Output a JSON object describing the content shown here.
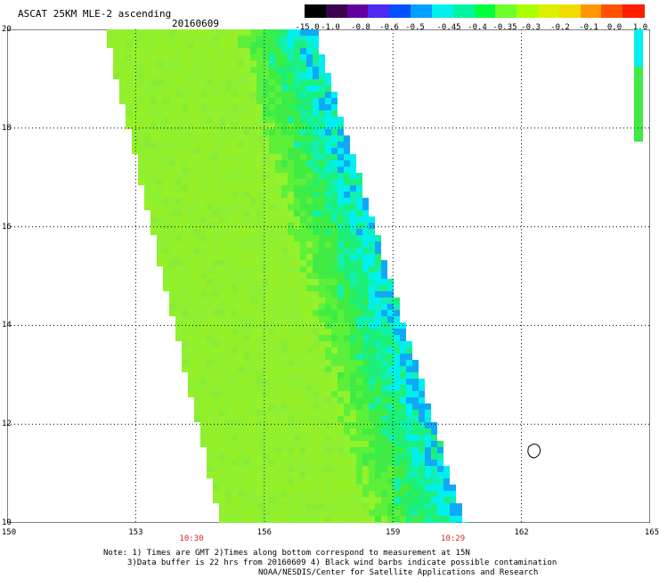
{
  "header": {
    "title": "ASCAT 25KM MLE-2 ascending",
    "date": "20160609"
  },
  "colorbar": {
    "ticks": [
      "-15.0",
      "-1.0",
      "-0.8",
      "-0.6",
      "-0.5",
      "-0.45",
      "-0.4",
      "-0.35",
      "-0.3",
      "-0.2",
      "-0.1",
      "0.0",
      "1.0"
    ],
    "colors": [
      "#000000",
      "#3c0050",
      "#6400a0",
      "#5028f0",
      "#0050ff",
      "#00a0ff",
      "#00f0f0",
      "#00f5a0",
      "#00ff3c",
      "#6eff28",
      "#aaff00",
      "#dcf000",
      "#f0dc00",
      "#ff9600",
      "#ff5000",
      "#ff1e00"
    ]
  },
  "map": {
    "lon_ticks": [
      "150",
      "153",
      "156",
      "159",
      "162",
      "165"
    ],
    "lat_ticks": [
      "10",
      "12",
      "14",
      "16",
      "18",
      "20"
    ],
    "lon_range": [
      150,
      165
    ],
    "lat_range": [
      10,
      20
    ],
    "pass_times": [
      "10:30",
      "10:29"
    ],
    "pass_time_lon": [
      154.3,
      160.4
    ],
    "swath_corners_west_edge": [
      [
        152.3,
        20
      ],
      [
        155.0,
        10
      ]
    ],
    "swath_corners_east_edge": [
      [
        157.2,
        20
      ],
      [
        160.7,
        10
      ]
    ],
    "gridline_color": "#0000ff",
    "grid_black_lon": [
      153,
      159,
      162
    ],
    "grid_blue_lon": [
      156
    ],
    "island_lon_lat": [
      162.3,
      11.5
    ]
  },
  "notes": {
    "line1": "Note: 1) Times are GMT 2)Times along bottom correspond to measurement at 15N",
    "line2": "3)Data buffer is 22 hrs from 20160609 4) Black wind barbs indicate possible contamination",
    "line3": "NOAA/NESDIS/Center for Satellite Applications and Research"
  }
}
